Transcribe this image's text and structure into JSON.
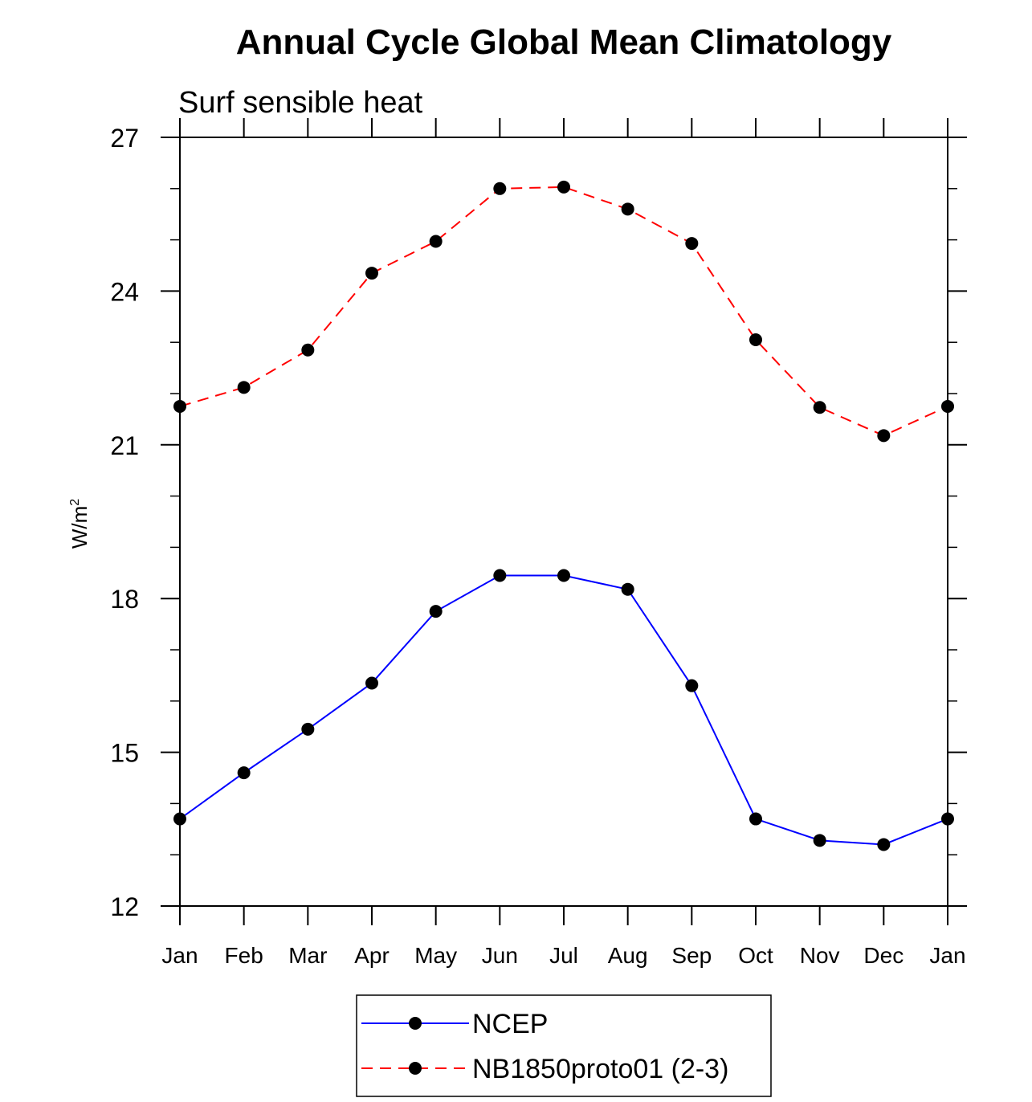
{
  "chart_data": {
    "type": "line",
    "title": "Annual Cycle Global Mean Climatology",
    "subtitle": "Surf sensible heat",
    "ylabel_base": "W/m",
    "ylabel_sup": "2",
    "xlabel": "",
    "categories": [
      "Jan",
      "Feb",
      "Mar",
      "Apr",
      "May",
      "Jun",
      "Jul",
      "Aug",
      "Sep",
      "Oct",
      "Nov",
      "Dec",
      "Jan"
    ],
    "ylim": [
      12,
      27
    ],
    "yticks": [
      12,
      15,
      18,
      21,
      24,
      27
    ],
    "yminor_step": 1,
    "grid": false,
    "legend_position": "bottom-center",
    "series": [
      {
        "name": "NCEP",
        "color": "#0000ff",
        "dash": "solid",
        "marker": "filled-circle",
        "values": [
          13.7,
          14.6,
          15.45,
          16.35,
          17.75,
          18.45,
          18.45,
          18.18,
          16.3,
          13.7,
          13.28,
          13.2,
          13.7
        ]
      },
      {
        "name": "NB1850proto01 (2-3)",
        "color": "#ff0000",
        "dash": "dashed",
        "marker": "filled-circle",
        "values": [
          21.75,
          22.12,
          22.85,
          24.35,
          24.97,
          26.0,
          26.03,
          25.6,
          24.93,
          23.05,
          21.73,
          21.18,
          21.75
        ]
      }
    ]
  }
}
